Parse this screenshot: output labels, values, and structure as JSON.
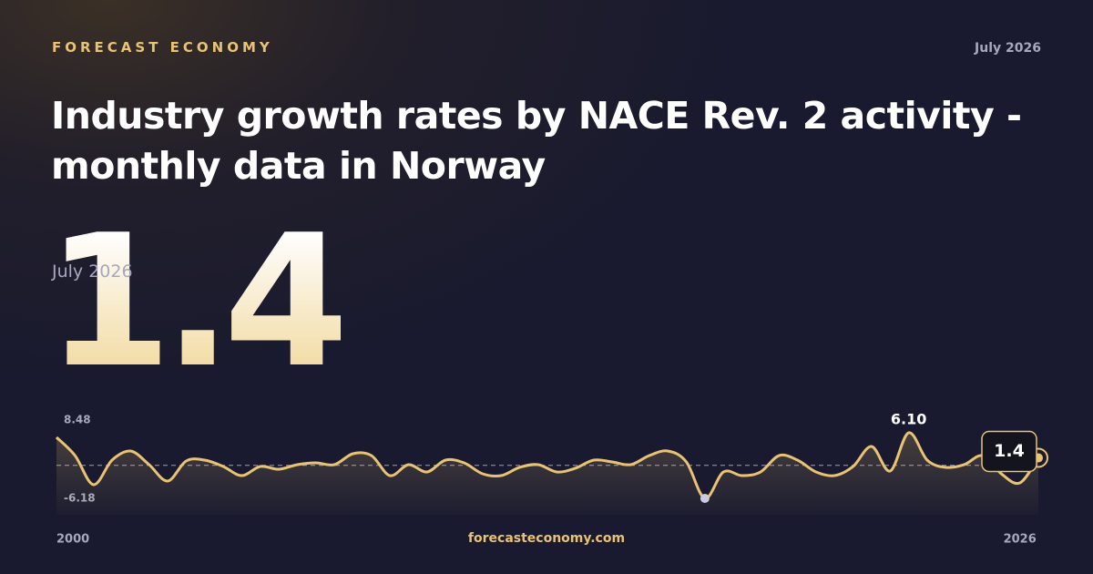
{
  "brand": "FORECAST ECONOMY",
  "date": "July 2026",
  "title": "Industry growth rates by NACE Rev. 2 activity - monthly data in Norway",
  "headline": {
    "value": "1.4",
    "date": "July 2026"
  },
  "footer": "forecasteconomy.com",
  "chart_data": {
    "type": "line",
    "color": "#e8c374",
    "x": [
      2000,
      2000.5,
      2001,
      2001.5,
      2002,
      2002.5,
      2003,
      2003.5,
      2004,
      2004.5,
      2005,
      2005.5,
      2006,
      2006.5,
      2007,
      2007.5,
      2008,
      2008.5,
      2009,
      2009.5,
      2010,
      2010.5,
      2011,
      2011.5,
      2012,
      2012.5,
      2013,
      2013.5,
      2014,
      2014.5,
      2015,
      2015.5,
      2016,
      2016.5,
      2017,
      2017.5,
      2018,
      2018.5,
      2019,
      2019.5,
      2020,
      2020.5,
      2021,
      2021.5,
      2022,
      2022.5,
      2023,
      2023.5,
      2024,
      2024.5,
      2025,
      2025.5,
      2026,
      2026.5
    ],
    "values": [
      5.24,
      1.83,
      -3.62,
      0.98,
      2.68,
      0.13,
      -2.94,
      0.81,
      0.98,
      -0.21,
      -1.92,
      -0.21,
      -0.73,
      0.13,
      0.47,
      0.13,
      2.17,
      1.83,
      -1.92,
      0.13,
      -1.24,
      0.98,
      0.47,
      -1.58,
      -1.92,
      -0.38,
      0.13,
      -1.24,
      -0.55,
      0.98,
      0.64,
      0.13,
      1.83,
      2.68,
      0.64,
      -6.18,
      -1.24,
      -1.92,
      -1.24,
      1.83,
      0.98,
      -1.24,
      -1.92,
      -0.21,
      3.54,
      -1.07,
      6.1,
      0.98,
      -0.38,
      0.13,
      1.83,
      -1.58,
      -3.28,
      1.4
    ],
    "value_labels": [
      null,
      null,
      null,
      null,
      null,
      null,
      null,
      null,
      null,
      null,
      null,
      null,
      null,
      null,
      null,
      null,
      null,
      null,
      null,
      null,
      null,
      null,
      null,
      null,
      null,
      null,
      null,
      null,
      null,
      null,
      null,
      null,
      null,
      null,
      null,
      null,
      null,
      null,
      null,
      null,
      null,
      null,
      null,
      null,
      null,
      null,
      "6.10",
      null,
      null,
      null,
      null,
      null,
      null,
      null
    ],
    "xlim": [
      2000,
      2026.5
    ],
    "xticks": [
      2000,
      2026
    ],
    "ylim": [
      -6.18,
      8.48
    ],
    "yticks": [
      -6.18,
      8.48
    ]
  }
}
